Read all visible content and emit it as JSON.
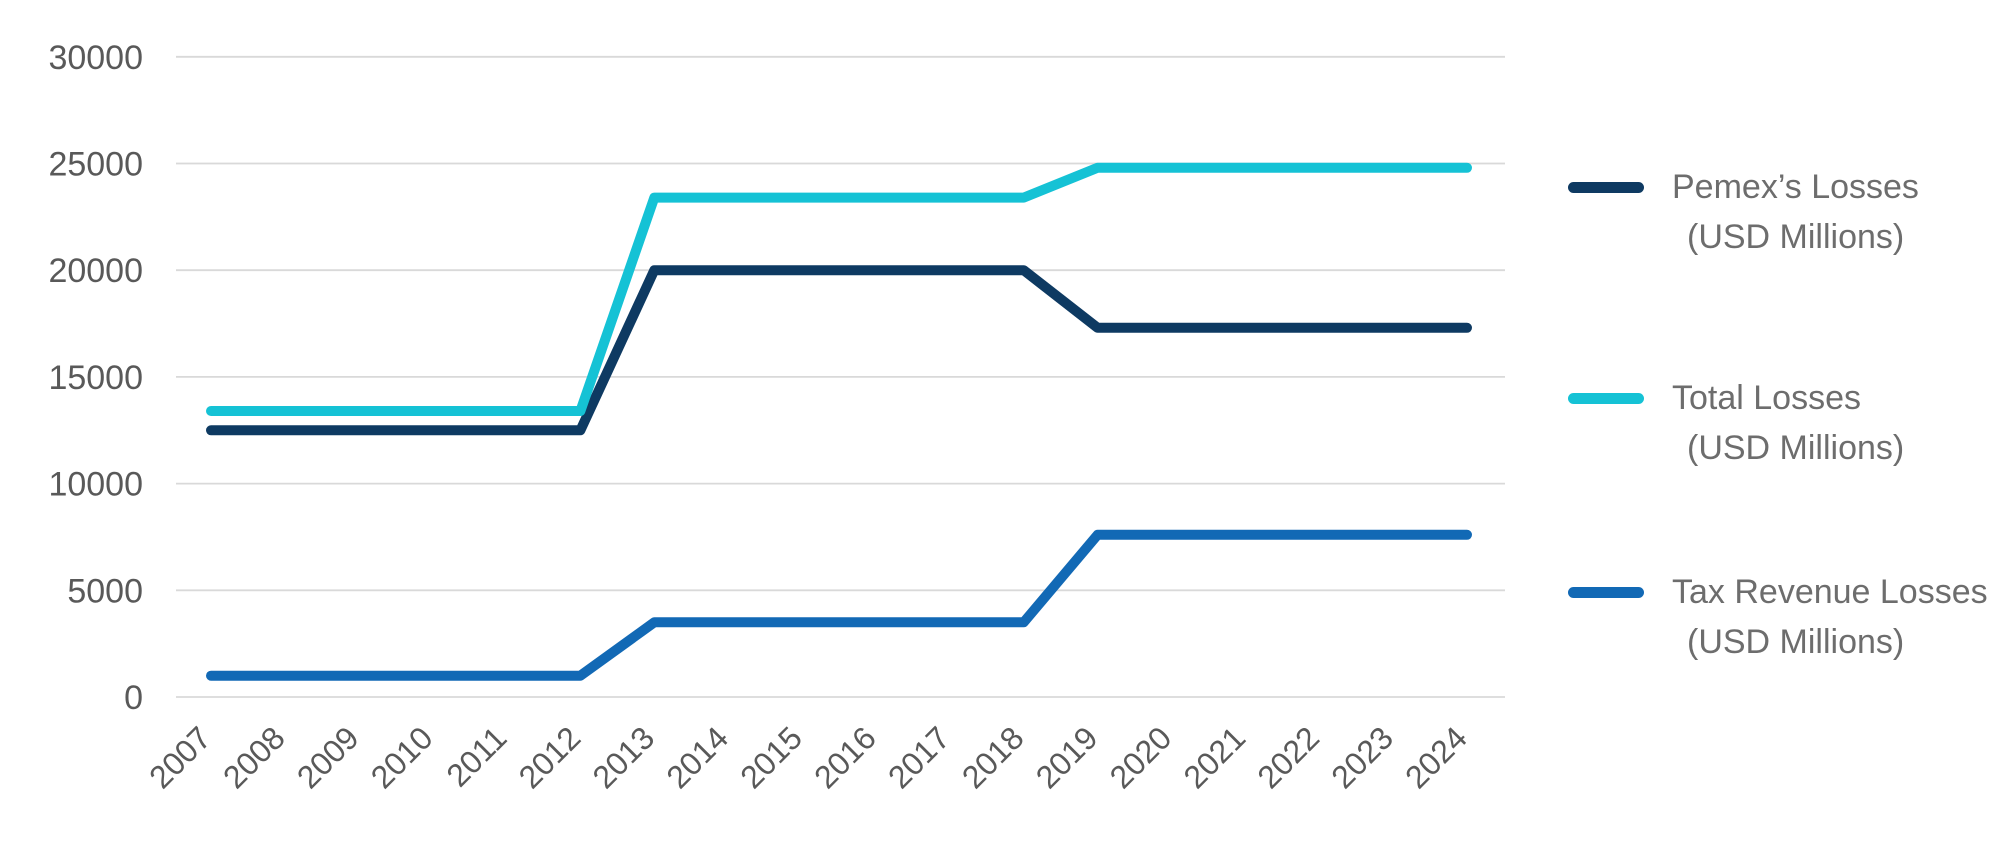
{
  "chart_data": {
    "type": "line",
    "title": "",
    "xlabel": "",
    "ylabel": "",
    "x": [
      "2007",
      "2008",
      "2009",
      "2010",
      "2011",
      "2012",
      "2013",
      "2014",
      "2015",
      "2016",
      "2017",
      "2018",
      "2019",
      "2020",
      "2021",
      "2022",
      "2023",
      "2024"
    ],
    "y_ticks": [
      "0",
      "5000",
      "10000",
      "15000",
      "20000",
      "25000",
      "30000"
    ],
    "ylim": [
      0,
      30000
    ],
    "grid": "horizontal",
    "legend_position": "right",
    "series": [
      {
        "name": "Pemex’s Losses (USD Millions)",
        "color": "#0e3a62",
        "values": [
          12500,
          12500,
          12500,
          12500,
          12500,
          12500,
          20000,
          20000,
          20000,
          20000,
          20000,
          20000,
          17300,
          17300,
          17300,
          17300,
          17300,
          17300
        ]
      },
      {
        "name": "Total Losses (USD Millions)",
        "color": "#15c2d5",
        "values": [
          13400,
          13400,
          13400,
          13400,
          13400,
          13400,
          23400,
          23400,
          23400,
          23400,
          23400,
          23400,
          24800,
          24800,
          24800,
          24800,
          24800,
          24800
        ]
      },
      {
        "name": "Tax Revenue Losses (USD Millions)",
        "color": "#1269b5",
        "values": [
          1000,
          1000,
          1000,
          1000,
          1000,
          1000,
          3500,
          3500,
          3500,
          3500,
          3500,
          3500,
          7600,
          7600,
          7600,
          7600,
          7600,
          7600
        ]
      }
    ]
  },
  "legend": {
    "items": [
      {
        "title": "Pemex’s Losses",
        "subtitle": "(USD Millions)",
        "color": "#0e3a62"
      },
      {
        "title": "Total Losses",
        "subtitle": "(USD Millions)",
        "color": "#15c2d5"
      },
      {
        "title": "Tax Revenue Losses",
        "subtitle": "(USD Millions)",
        "color": "#1269b5"
      }
    ]
  },
  "colors": {
    "gridline": "#d9d9d9",
    "axis_tick_text": "#595959",
    "legend_text": "#6d6d6d",
    "background": "#ffffff"
  }
}
